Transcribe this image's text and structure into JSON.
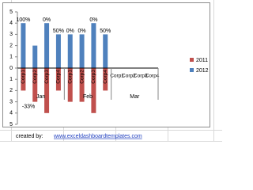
{
  "chart_data": {
    "type": "bar",
    "groups": [
      "Jan",
      "Feb",
      "Mar"
    ],
    "categories": [
      "Corp1",
      "Corp2",
      "Corp3",
      "Corp4",
      "Corp1",
      "Corp2",
      "Corp3",
      "Corp4",
      "Corp1",
      "Corp2",
      "Corp3",
      "Corp4"
    ],
    "series": [
      {
        "name": "2011",
        "color": "#c0504d",
        "values": [
          -2,
          -3,
          -4,
          -2,
          -3,
          -3,
          -4,
          -2,
          null,
          null,
          null,
          null
        ]
      },
      {
        "name": "2012",
        "color": "#4f81bd",
        "values": [
          4,
          2,
          4,
          3,
          3,
          3,
          4,
          3,
          null,
          null,
          null,
          null
        ]
      }
    ],
    "change_labels": [
      "100%",
      "-33%",
      "0%",
      "50%",
      "0%",
      "0%",
      "0%",
      "50%",
      null,
      null,
      null,
      null
    ],
    "ylim": [
      -5,
      5
    ],
    "yticks": [
      {
        "value": -5,
        "label": "5"
      },
      {
        "value": -4,
        "label": "4"
      },
      {
        "value": -3,
        "label": "3"
      },
      {
        "value": -2,
        "label": "2"
      },
      {
        "value": -1,
        "label": "1"
      },
      0,
      1,
      2,
      3,
      4,
      5
    ],
    "legend": "right"
  },
  "footer": {
    "label": "created by:",
    "link": "www.exceldashboardtemplates.com"
  }
}
